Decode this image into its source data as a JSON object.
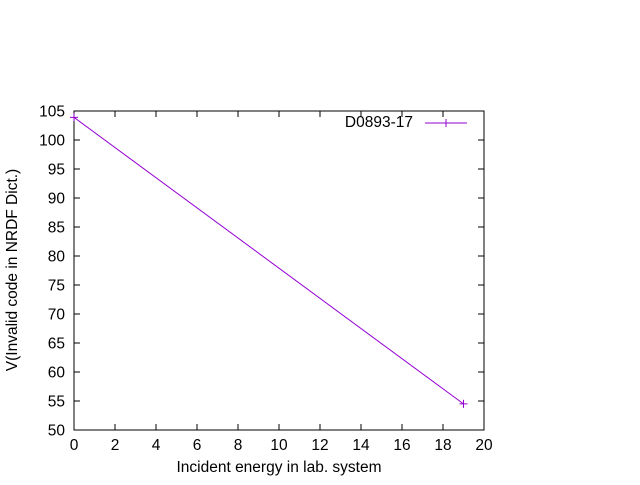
{
  "chart_data": {
    "type": "line",
    "title": "",
    "xlabel": "Incident energy in lab. system",
    "ylabel": "V(Invalid code in NRDF Dict.)",
    "xlim": [
      0,
      20
    ],
    "ylim": [
      50,
      105
    ],
    "xticks": [
      0,
      2,
      4,
      6,
      8,
      10,
      12,
      14,
      16,
      18,
      20
    ],
    "yticks": [
      50,
      55,
      60,
      65,
      70,
      75,
      80,
      85,
      90,
      95,
      100,
      105
    ],
    "grid": false,
    "legend": {
      "position": "top-right"
    },
    "series": [
      {
        "name": "D0893-17",
        "color": "#9400d3",
        "marker": "plus",
        "points": [
          {
            "x": 0,
            "y": 103.9
          },
          {
            "x": 19,
            "y": 54.5
          }
        ]
      }
    ]
  }
}
